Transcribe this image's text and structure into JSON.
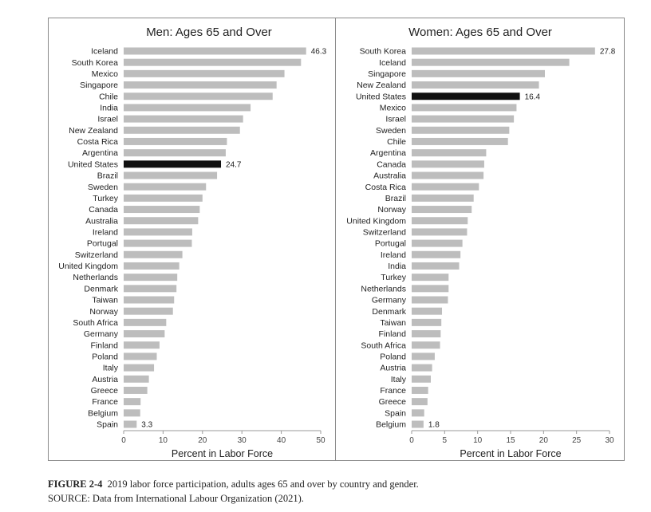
{
  "chart_data": [
    {
      "type": "bar",
      "orientation": "horizontal",
      "title": "Men: Ages 65 and Over",
      "xlabel": "Percent in Labor Force",
      "xlim": [
        0,
        50
      ],
      "xticks": [
        0,
        10,
        20,
        30,
        40,
        50
      ],
      "highlight": "United States",
      "bar_color": "#bdbdbd",
      "highlight_color": "#111111",
      "grid": false,
      "categories": [
        "Iceland",
        "South Korea",
        "Mexico",
        "Singapore",
        "Chile",
        "India",
        "Israel",
        "New Zealand",
        "Costa Rica",
        "Argentina",
        "United States",
        "Brazil",
        "Sweden",
        "Turkey",
        "Canada",
        "Australia",
        "Ireland",
        "Portugal",
        "Switzerland",
        "United Kingdom",
        "Netherlands",
        "Denmark",
        "Taiwan",
        "Norway",
        "South Africa",
        "Germany",
        "Finland",
        "Poland",
        "Italy",
        "Austria",
        "Greece",
        "France",
        "Belgium",
        "Spain"
      ],
      "values": [
        46.3,
        45.0,
        40.8,
        38.8,
        37.8,
        32.2,
        30.3,
        29.5,
        26.2,
        25.9,
        24.7,
        23.7,
        20.9,
        20.0,
        19.3,
        18.9,
        17.4,
        17.3,
        14.9,
        14.1,
        13.6,
        13.4,
        12.8,
        12.5,
        10.8,
        10.4,
        9.1,
        8.4,
        7.7,
        6.4,
        6.0,
        4.3,
        4.2,
        3.3
      ],
      "data_labels": {
        "Iceland": "46.3",
        "United States": "24.7",
        "Spain": "3.3"
      }
    },
    {
      "type": "bar",
      "orientation": "horizontal",
      "title": "Women: Ages 65 and Over",
      "xlabel": "Percent in Labor Force",
      "xlim": [
        0,
        30
      ],
      "xticks": [
        0,
        5,
        10,
        15,
        20,
        25,
        30
      ],
      "highlight": "United States",
      "bar_color": "#bdbdbd",
      "highlight_color": "#111111",
      "grid": false,
      "categories": [
        "South Korea",
        "Iceland",
        "Singapore",
        "New Zealand",
        "United States",
        "Mexico",
        "Israel",
        "Sweden",
        "Chile",
        "Argentina",
        "Canada",
        "Australia",
        "Costa Rica",
        "Brazil",
        "Norway",
        "United Kingdom",
        "Switzerland",
        "Portugal",
        "Ireland",
        "India",
        "Turkey",
        "Netherlands",
        "Germany",
        "Denmark",
        "Taiwan",
        "Finland",
        "South Africa",
        "Poland",
        "Austria",
        "Italy",
        "France",
        "Greece",
        "Spain",
        "Belgium"
      ],
      "values": [
        27.8,
        23.9,
        20.2,
        19.3,
        16.4,
        15.9,
        15.5,
        14.8,
        14.6,
        11.3,
        11.0,
        10.9,
        10.2,
        9.4,
        9.1,
        8.5,
        8.4,
        7.7,
        7.4,
        7.2,
        5.6,
        5.6,
        5.5,
        4.6,
        4.5,
        4.4,
        4.3,
        3.5,
        3.1,
        2.9,
        2.5,
        2.4,
        1.9,
        1.8
      ],
      "data_labels": {
        "South Korea": "27.8",
        "United States": "16.4",
        "Belgium": "1.8"
      }
    }
  ],
  "caption": {
    "figure_label": "FIGURE 2-4",
    "figure_text": "2019 labor force participation, adults ages 65 and over by country and gender.",
    "source_text": "SOURCE: Data from International Labour Organization (2021)."
  }
}
